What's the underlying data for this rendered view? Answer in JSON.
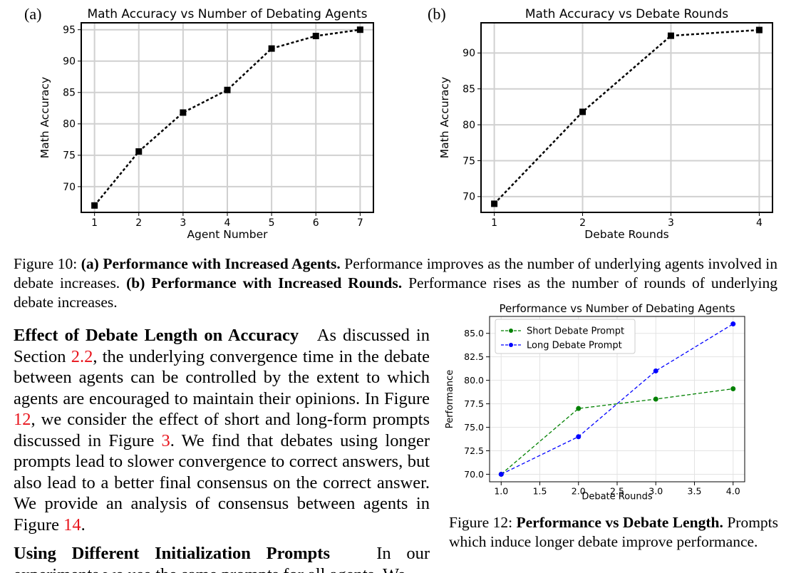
{
  "figure10": {
    "caption_label": "Figure 10:",
    "panel_a_letter": "(a)",
    "panel_a_caption_bold": "Performance with Increased Agents.",
    "panel_a_caption_text": "Performance improves as the number of underlying agents involved in debate increases.",
    "panel_b_letter": "(b)",
    "panel_b_caption_bold": "Performance with Increased Rounds.",
    "panel_b_caption_text": "Performance rises as the number of rounds of underlying debate increases."
  },
  "figure12": {
    "caption_label": "Figure 12:",
    "caption_bold": "Performance vs Debate Length.",
    "caption_text": "Prompts which induce longer debate improve performance."
  },
  "body": {
    "para1_heading": "Effect of Debate Length on Accuracy",
    "para1_t1": "As discussed in Section ",
    "para1_ref_section": "2.2",
    "para1_t2": ", the underlying convergence time in the debate between agents can be controlled by the extent to which agents are encouraged to maintain their opinions. In Figure ",
    "para1_ref_fig12": "12",
    "para1_t3": ", we consider the effect of short and long-form prompts discussed in Figure ",
    "para1_ref_fig3": "3",
    "para1_t4": ". We find that debates using longer prompts lead to slower convergence to correct answers, but also lead to a better final consensus on the correct answer. We provide an analysis of consensus between agents in Figure ",
    "para1_ref_fig14": "14",
    "para1_t5": ".",
    "para2_heading": "Using Different Initialization Prompts",
    "para2_text": "In our experiments we use the same prompts for all agents. We"
  },
  "chart_data": [
    {
      "type": "line",
      "title": "Math Accuracy vs Number of Debating Agents",
      "xlabel": "Agent Number",
      "ylabel": "Math Accuracy",
      "x": [
        1,
        2,
        3,
        4,
        5,
        6,
        7
      ],
      "xticks": [
        1,
        2,
        3,
        4,
        5,
        6,
        7
      ],
      "yticks": [
        70,
        75,
        80,
        85,
        90,
        95
      ],
      "xlim": [
        0.7,
        7.3
      ],
      "ylim": [
        65.9,
        96.1
      ],
      "grid": true,
      "series": [
        {
          "values": [
            67.0,
            75.6,
            81.8,
            85.4,
            92.0,
            94.0,
            95.0
          ],
          "color": "#000000",
          "marker": "square",
          "linestyle": "dotted"
        }
      ]
    },
    {
      "type": "line",
      "title": "Math Accuracy vs Debate Rounds",
      "xlabel": "Debate Rounds",
      "ylabel": "Math Accuracy",
      "x": [
        1,
        2,
        3,
        4
      ],
      "xticks": [
        1,
        2,
        3,
        4
      ],
      "yticks": [
        70,
        75,
        80,
        85,
        90
      ],
      "xlim": [
        0.85,
        4.15
      ],
      "ylim": [
        67.8,
        94.2
      ],
      "grid": true,
      "series": [
        {
          "values": [
            69.0,
            81.8,
            92.4,
            93.2
          ],
          "color": "#000000",
          "marker": "square",
          "linestyle": "dotted"
        }
      ]
    },
    {
      "type": "line",
      "title": "Performance vs Number of Debating Agents",
      "xlabel": "Debate Rounds",
      "ylabel": "Performance",
      "x": [
        1.0,
        2.0,
        3.0,
        4.0
      ],
      "xticks": [
        "1.0",
        "1.5",
        "2.0",
        "2.5",
        "3.0",
        "3.5",
        "4.0"
      ],
      "yticks": [
        "70.0",
        "72.5",
        "75.0",
        "77.5",
        "80.0",
        "82.5",
        "85.0"
      ],
      "xlim": [
        0.85,
        4.15
      ],
      "ylim": [
        69.2,
        86.8
      ],
      "grid": true,
      "legend_position": "top-left",
      "series": [
        {
          "name": "Short Debate Prompt",
          "values": [
            70.0,
            77.0,
            78.0,
            79.1
          ],
          "color": "#008000",
          "marker": "circle",
          "linestyle": "dashed"
        },
        {
          "name": "Long Debate Prompt",
          "values": [
            70.0,
            74.0,
            81.0,
            86.0
          ],
          "color": "#0000ff",
          "marker": "circle",
          "linestyle": "dashed"
        }
      ]
    }
  ]
}
